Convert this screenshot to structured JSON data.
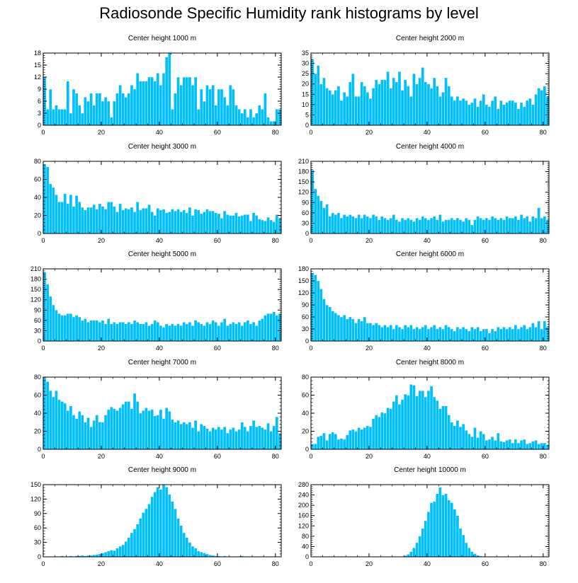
{
  "title": "Radiosonde Specific Humidity rank histograms by level",
  "bar_color": "#00bfff",
  "chart_data": [
    {
      "type": "bar",
      "title": "Center height 1000 m",
      "xlim": [
        0,
        82
      ],
      "ylim": [
        0,
        18
      ],
      "xticks": [
        0,
        20,
        40,
        60,
        80
      ],
      "yticks": [
        0,
        3,
        6,
        9,
        12,
        15,
        18
      ],
      "values": [
        12,
        4,
        9,
        4,
        5,
        4,
        4,
        4,
        11,
        3,
        9,
        8,
        5,
        3,
        7,
        6,
        8,
        5,
        8,
        8,
        6,
        7,
        6,
        2,
        6,
        8,
        10,
        8,
        7,
        8,
        10,
        9,
        13,
        11,
        11,
        11,
        12,
        12,
        11,
        13,
        10,
        13,
        17,
        18,
        4,
        8,
        12,
        10,
        12,
        12,
        12,
        10,
        12,
        4,
        9,
        6,
        10,
        9,
        10,
        5,
        9,
        9,
        7,
        5,
        10,
        9,
        5,
        4,
        3,
        4,
        2,
        4,
        2,
        3,
        5,
        4,
        8,
        2,
        1,
        1,
        4,
        4
      ]
    },
    {
      "type": "bar",
      "title": "Center height 2000 m",
      "xlim": [
        0,
        82
      ],
      "ylim": [
        0,
        35
      ],
      "xticks": [
        0,
        20,
        40,
        60,
        80
      ],
      "yticks": [
        0,
        5,
        10,
        15,
        20,
        25,
        30,
        35
      ],
      "values": [
        32,
        25,
        29,
        20,
        23,
        18,
        17,
        15,
        17,
        19,
        12,
        16,
        14,
        21,
        25,
        14,
        14,
        21,
        19,
        16,
        13,
        18,
        22,
        20,
        22,
        22,
        26,
        18,
        23,
        21,
        26,
        17,
        22,
        19,
        14,
        25,
        20,
        23,
        28,
        21,
        20,
        18,
        23,
        19,
        14,
        16,
        23,
        19,
        14,
        12,
        14,
        12,
        13,
        12,
        10,
        11,
        13,
        9,
        12,
        15,
        10,
        9,
        12,
        14,
        8,
        12,
        10,
        11,
        12,
        12,
        11,
        8,
        11,
        9,
        12,
        13,
        10,
        15,
        18,
        17,
        19,
        14
      ]
    },
    {
      "type": "bar",
      "title": "Center height 3000 m",
      "xlim": [
        0,
        82
      ],
      "ylim": [
        0,
        80
      ],
      "xticks": [
        0,
        20,
        40,
        60,
        80
      ],
      "yticks": [
        0,
        20,
        40,
        60,
        80
      ],
      "values": [
        77,
        74,
        55,
        51,
        43,
        35,
        35,
        44,
        33,
        43,
        30,
        42,
        35,
        29,
        26,
        29,
        29,
        32,
        27,
        33,
        30,
        27,
        35,
        35,
        30,
        24,
        33,
        26,
        28,
        27,
        29,
        24,
        35,
        26,
        28,
        28,
        32,
        24,
        20,
        28,
        26,
        27,
        23,
        24,
        27,
        25,
        27,
        24,
        26,
        23,
        29,
        20,
        27,
        26,
        22,
        24,
        27,
        25,
        25,
        23,
        22,
        17,
        25,
        21,
        20,
        20,
        23,
        19,
        20,
        21,
        21,
        14,
        23,
        20,
        16,
        15,
        14,
        18,
        15,
        13,
        21,
        17
      ]
    },
    {
      "type": "bar",
      "title": "Center height 4000 m",
      "xlim": [
        0,
        82
      ],
      "ylim": [
        0,
        210
      ],
      "xticks": [
        0,
        20,
        40,
        60,
        80
      ],
      "yticks": [
        0,
        30,
        60,
        90,
        120,
        150,
        180,
        210
      ],
      "values": [
        185,
        130,
        110,
        95,
        75,
        85,
        50,
        60,
        55,
        60,
        45,
        55,
        50,
        55,
        50,
        45,
        55,
        45,
        55,
        50,
        45,
        55,
        50,
        40,
        50,
        45,
        40,
        45,
        55,
        40,
        35,
        45,
        40,
        45,
        40,
        35,
        45,
        40,
        50,
        45,
        40,
        45,
        50,
        40,
        55,
        35,
        40,
        40,
        45,
        40,
        45,
        40,
        35,
        45,
        40,
        25,
        40,
        50,
        45,
        40,
        45,
        40,
        50,
        45,
        40,
        45,
        40,
        50,
        45,
        45,
        50,
        40,
        55,
        45,
        50,
        35,
        50,
        45,
        75,
        45,
        50,
        40
      ]
    },
    {
      "type": "bar",
      "title": "Center height 5000 m",
      "xlim": [
        0,
        82
      ],
      "ylim": [
        0,
        210
      ],
      "xticks": [
        0,
        20,
        40,
        60,
        80
      ],
      "yticks": [
        0,
        30,
        60,
        90,
        120,
        150,
        180,
        210
      ],
      "values": [
        200,
        165,
        130,
        105,
        90,
        80,
        75,
        75,
        80,
        80,
        70,
        75,
        70,
        60,
        65,
        55,
        60,
        60,
        60,
        55,
        60,
        50,
        65,
        50,
        55,
        50,
        55,
        55,
        50,
        55,
        50,
        60,
        55,
        50,
        50,
        55,
        45,
        50,
        60,
        55,
        45,
        40,
        50,
        45,
        50,
        45,
        50,
        45,
        55,
        50,
        55,
        45,
        60,
        55,
        50,
        45,
        55,
        50,
        60,
        55,
        45,
        55,
        65,
        45,
        50,
        55,
        50,
        55,
        45,
        55,
        60,
        50,
        55,
        45,
        60,
        65,
        75,
        80,
        80,
        85,
        75,
        80
      ]
    },
    {
      "type": "bar",
      "title": "Center height 6000 m",
      "xlim": [
        0,
        82
      ],
      "ylim": [
        0,
        180
      ],
      "xticks": [
        0,
        20,
        40,
        60,
        80
      ],
      "yticks": [
        0,
        30,
        60,
        90,
        120,
        150,
        180
      ],
      "values": [
        170,
        165,
        150,
        130,
        105,
        90,
        85,
        75,
        70,
        65,
        60,
        65,
        55,
        60,
        55,
        45,
        55,
        50,
        60,
        45,
        45,
        40,
        45,
        40,
        35,
        40,
        35,
        40,
        30,
        40,
        35,
        30,
        40,
        35,
        40,
        30,
        35,
        30,
        35,
        40,
        30,
        35,
        40,
        30,
        35,
        30,
        40,
        35,
        30,
        25,
        35,
        30,
        35,
        30,
        25,
        35,
        30,
        35,
        25,
        30,
        30,
        20,
        30,
        25,
        35,
        30,
        35,
        30,
        35,
        30,
        40,
        30,
        35,
        40,
        30,
        35,
        45,
        35,
        50,
        30,
        50,
        35
      ]
    },
    {
      "type": "bar",
      "title": "Center height 7000 m",
      "xlim": [
        0,
        82
      ],
      "ylim": [
        0,
        80
      ],
      "xticks": [
        0,
        20,
        40,
        60,
        80
      ],
      "yticks": [
        0,
        20,
        40,
        60,
        80
      ],
      "values": [
        80,
        75,
        65,
        58,
        65,
        55,
        53,
        51,
        43,
        48,
        38,
        34,
        42,
        38,
        30,
        35,
        25,
        32,
        38,
        30,
        30,
        38,
        44,
        47,
        45,
        43,
        46,
        50,
        53,
        53,
        45,
        62,
        53,
        40,
        43,
        46,
        43,
        44,
        37,
        38,
        44,
        34,
        46,
        42,
        33,
        30,
        32,
        28,
        30,
        28,
        30,
        24,
        32,
        20,
        28,
        26,
        23,
        20,
        24,
        22,
        25,
        22,
        25,
        18,
        22,
        24,
        20,
        22,
        30,
        25,
        20,
        26,
        32,
        25,
        26,
        24,
        22,
        29,
        20,
        26,
        36,
        18
      ]
    },
    {
      "type": "bar",
      "title": "Center height 8000 m",
      "xlim": [
        0,
        82
      ],
      "ylim": [
        0,
        80
      ],
      "xticks": [
        0,
        20,
        40,
        60,
        80
      ],
      "yticks": [
        0,
        20,
        40,
        60,
        80
      ],
      "values": [
        6,
        6,
        14,
        15,
        18,
        10,
        17,
        19,
        17,
        11,
        12,
        11,
        16,
        21,
        22,
        20,
        24,
        22,
        24,
        26,
        25,
        34,
        38,
        36,
        41,
        40,
        46,
        45,
        53,
        60,
        50,
        55,
        61,
        60,
        72,
        71,
        59,
        65,
        65,
        58,
        65,
        70,
        58,
        54,
        45,
        48,
        48,
        38,
        30,
        26,
        32,
        25,
        28,
        21,
        17,
        14,
        24,
        13,
        20,
        17,
        10,
        11,
        14,
        10,
        18,
        9,
        8,
        10,
        11,
        7,
        11,
        7,
        10,
        11,
        6,
        7,
        9,
        10,
        6,
        7,
        7,
        5
      ]
    },
    {
      "type": "bar",
      "title": "Center height 9000 m",
      "xlim": [
        0,
        82
      ],
      "ylim": [
        0,
        150
      ],
      "xticks": [
        0,
        20,
        40,
        60,
        80
      ],
      "yticks": [
        0,
        30,
        60,
        90,
        120,
        150
      ],
      "values": [
        0,
        0,
        0,
        0,
        1,
        1,
        2,
        1,
        1,
        2,
        1,
        2,
        2,
        3,
        2,
        3,
        3,
        4,
        5,
        6,
        8,
        10,
        12,
        14,
        13,
        18,
        22,
        25,
        32,
        40,
        50,
        58,
        68,
        80,
        92,
        100,
        110,
        125,
        135,
        145,
        140,
        150,
        145,
        130,
        115,
        100,
        80,
        65,
        50,
        40,
        30,
        22,
        18,
        12,
        10,
        8,
        6,
        4,
        3,
        2,
        2,
        1,
        2,
        1,
        1,
        1,
        1,
        1,
        2,
        1,
        1,
        0,
        0,
        1,
        0,
        1,
        0,
        0,
        0,
        0,
        0,
        0
      ]
    },
    {
      "type": "bar",
      "title": "Center height 10000 m",
      "xlim": [
        0,
        82
      ],
      "ylim": [
        0,
        280
      ],
      "xticks": [
        0,
        20,
        40,
        60,
        80
      ],
      "yticks": [
        0,
        40,
        80,
        120,
        160,
        200,
        240,
        280
      ],
      "values": [
        0,
        0,
        0,
        0,
        0,
        0,
        0,
        0,
        0,
        0,
        0,
        0,
        0,
        0,
        0,
        0,
        0,
        0,
        0,
        0,
        0,
        0,
        0,
        0,
        0,
        0,
        0,
        0,
        0,
        0,
        1,
        2,
        5,
        10,
        20,
        35,
        55,
        80,
        110,
        140,
        175,
        210,
        215,
        245,
        270,
        240,
        245,
        220,
        210,
        185,
        160,
        110,
        85,
        55,
        35,
        20,
        12,
        6,
        3,
        2,
        1,
        1,
        1,
        1,
        1,
        1,
        0,
        0,
        0,
        0,
        0,
        0,
        0,
        0,
        0,
        0,
        0,
        0,
        0,
        0,
        0,
        0
      ]
    }
  ]
}
